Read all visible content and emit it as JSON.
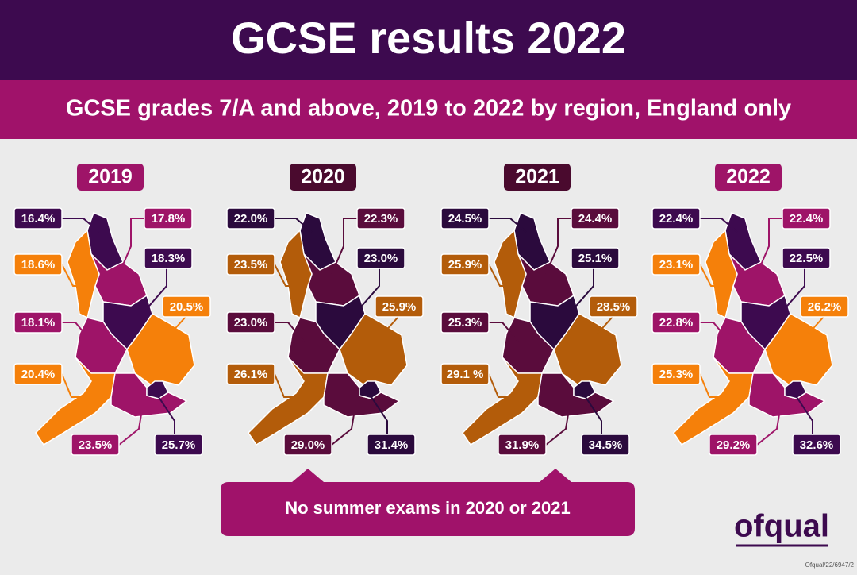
{
  "header": {
    "title": "GCSE results 2022",
    "subtitle": "GCSE grades 7/A and above, 2019 to 2022 by region, England only"
  },
  "maps": [
    {
      "year": "2019",
      "color": "#9e1468",
      "labels": [
        {
          "text": "16.4%",
          "color": "#3d0a4f"
        },
        {
          "text": "17.8%",
          "color": "#9e1468"
        },
        {
          "text": "18.6%",
          "color": "#f5800a"
        },
        {
          "text": "18.3%",
          "color": "#3d0a4f"
        },
        {
          "text": "20.5%",
          "color": "#f5800a"
        },
        {
          "text": "18.1%",
          "color": "#9e1468"
        },
        {
          "text": "20.4%",
          "color": "#f5800a"
        },
        {
          "text": "23.5%",
          "color": "#9e1468"
        },
        {
          "text": "25.7%",
          "color": "#3d0a4f"
        }
      ]
    },
    {
      "year": "2020",
      "color": "#4a0a2e",
      "labels": [
        {
          "text": "22.0%",
          "color": "#2b0a3d"
        },
        {
          "text": "22.3%",
          "color": "#5a0c3c"
        },
        {
          "text": "23.5%",
          "color": "#b35c0a"
        },
        {
          "text": "23.0%",
          "color": "#2b0a3d"
        },
        {
          "text": "25.9%",
          "color": "#b35c0a"
        },
        {
          "text": "23.0%",
          "color": "#5a0c3c"
        },
        {
          "text": "26.1%",
          "color": "#b35c0a"
        },
        {
          "text": "29.0%",
          "color": "#5a0c3c"
        },
        {
          "text": "31.4%",
          "color": "#2b0a3d"
        }
      ]
    },
    {
      "year": "2021",
      "color": "#4a0a2e",
      "labels": [
        {
          "text": "24.5%",
          "color": "#2b0a3d"
        },
        {
          "text": "24.4%",
          "color": "#5a0c3c"
        },
        {
          "text": "25.9%",
          "color": "#b35c0a"
        },
        {
          "text": "25.1%",
          "color": "#2b0a3d"
        },
        {
          "text": "28.5%",
          "color": "#b35c0a"
        },
        {
          "text": "25.3%",
          "color": "#5a0c3c"
        },
        {
          "text": "29.1 %",
          "color": "#b35c0a"
        },
        {
          "text": "31.9%",
          "color": "#5a0c3c"
        },
        {
          "text": "34.5%",
          "color": "#2b0a3d"
        }
      ]
    },
    {
      "year": "2022",
      "color": "#9e1468",
      "labels": [
        {
          "text": "22.4%",
          "color": "#3d0a4f"
        },
        {
          "text": "22.4%",
          "color": "#9e1468"
        },
        {
          "text": "23.1%",
          "color": "#f5800a"
        },
        {
          "text": "22.5%",
          "color": "#3d0a4f"
        },
        {
          "text": "26.2%",
          "color": "#f5800a"
        },
        {
          "text": "22.8%",
          "color": "#9e1468"
        },
        {
          "text": "25.3%",
          "color": "#f5800a"
        },
        {
          "text": "29.2%",
          "color": "#9e1468"
        },
        {
          "text": "32.6%",
          "color": "#3d0a4f"
        }
      ]
    }
  ],
  "note": "No summer exams in 2020 or 2021",
  "logo": "ofqual",
  "reference": "Ofqual/22/6947/2"
}
